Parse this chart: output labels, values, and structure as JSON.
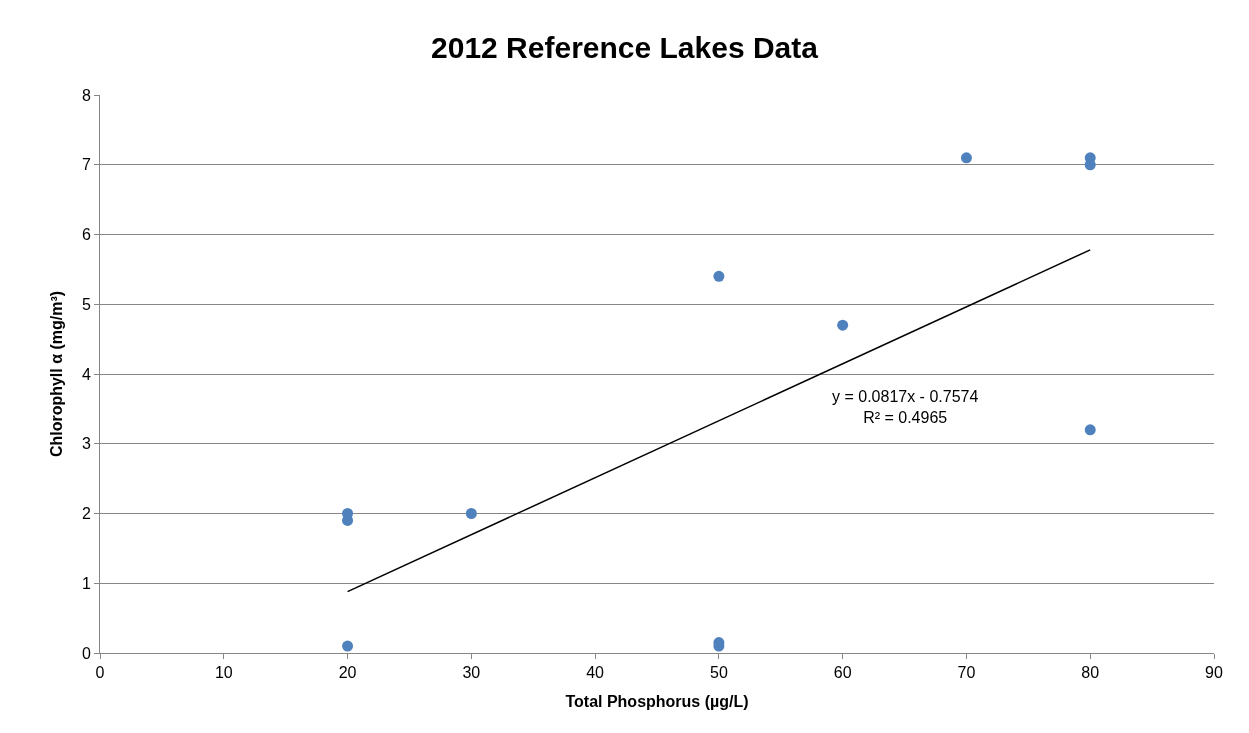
{
  "chart_data": {
    "type": "scatter",
    "title": "2012 Reference Lakes Data",
    "xlabel": "Total Phosphorus (µg/L)",
    "ylabel": "Chlorophyll α (mg/m³)",
    "x": [
      20,
      20,
      20,
      30,
      50,
      50,
      50,
      60,
      70,
      80,
      80,
      80
    ],
    "series": [
      {
        "color": "#4f81bd",
        "marker": "circle",
        "values": [
          2.0,
          1.9,
          0.1,
          2.0,
          5.4,
          0.15,
          0.1,
          4.7,
          7.1,
          7.1,
          7.0,
          3.2
        ]
      },
      {
        "type": "line",
        "color": "#000000",
        "marker": "none",
        "line_style": "solid",
        "x": [
          20,
          80
        ],
        "values": [
          0.88,
          5.78
        ]
      }
    ],
    "annotations": [
      "y = 0.0817x - 0.7574\nR² = 0.4965"
    ],
    "xlim": [
      0,
      90
    ],
    "xticks": [
      0,
      10,
      20,
      30,
      40,
      50,
      60,
      70,
      80,
      90
    ],
    "ylim": [
      0,
      8
    ],
    "yticks": [
      0,
      1,
      2,
      3,
      4,
      5,
      6,
      7,
      8
    ],
    "grid": "y",
    "legend": false
  }
}
